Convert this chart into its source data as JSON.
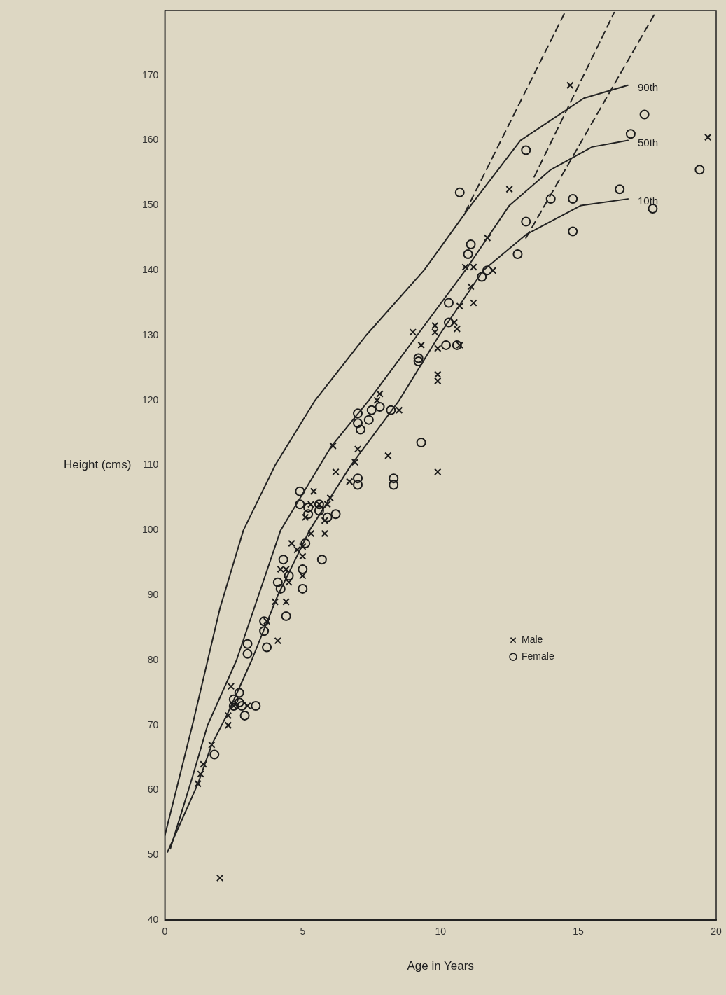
{
  "chart_data": {
    "type": "scatter",
    "xlabel": "Age in Years",
    "ylabel": "Height (cms)",
    "xlim": [
      0,
      20
    ],
    "ylim": [
      40,
      180
    ],
    "xticks": [
      0,
      5,
      10,
      15,
      20
    ],
    "yticks": [
      40,
      50,
      60,
      70,
      80,
      90,
      100,
      110,
      120,
      130,
      140,
      150,
      160,
      170
    ],
    "grid": false,
    "legend": "bottom right",
    "series": [
      {
        "name": "90th",
        "type": "line",
        "color": "#222222",
        "marker": "none",
        "line_style": "solid",
        "x": [
          0,
          1,
          2,
          2.85,
          4,
          5.45,
          7.3,
          9.4,
          11.1,
          12.9,
          15.2,
          16.8
        ],
        "values": [
          53,
          70,
          88,
          100,
          110,
          120,
          130,
          140,
          150,
          160,
          166.5,
          168.5
        ]
      },
      {
        "name": "50th",
        "type": "line",
        "color": "#222222",
        "marker": "none",
        "line_style": "solid",
        "x": [
          0.2,
          1,
          1.55,
          2.6,
          3.4,
          4.2,
          6.05,
          7.4,
          9.15,
          10.9,
          12.5,
          14,
          15.5,
          16.8
        ],
        "values": [
          51,
          62,
          70,
          80,
          90,
          100,
          113,
          120,
          130,
          140,
          150,
          155.5,
          159,
          160
        ]
      },
      {
        "name": "10th",
        "type": "line",
        "color": "#222222",
        "marker": "none",
        "line_style": "solid",
        "x": [
          0.1,
          1.2,
          1.7,
          2.3,
          3.15,
          4.1,
          5.25,
          6.75,
          8.5,
          9.95,
          11.55,
          13.1,
          15.1,
          16.8
        ],
        "values": [
          50.5,
          61,
          67,
          72,
          80,
          90,
          100,
          110,
          120,
          130,
          140,
          145.5,
          150,
          151
        ]
      },
      {
        "type": "line",
        "color": "#222222",
        "marker": "none",
        "line_style": "dashed",
        "x": [
          10.9,
          14.5
        ],
        "values": [
          149,
          179.6
        ]
      },
      {
        "type": "line",
        "color": "#222222",
        "marker": "none",
        "line_style": "dashed",
        "x": [
          13.4,
          16.3
        ],
        "values": [
          154.4,
          179.7
        ]
      },
      {
        "type": "line",
        "color": "#222222",
        "marker": "none",
        "line_style": "dashed",
        "x": [
          13.1,
          17.8
        ],
        "values": [
          145,
          179.7
        ]
      },
      {
        "name": "Male",
        "type": "scatter",
        "color": "#1a1a1a",
        "marker": "cross",
        "x": [
          1.2,
          1.3,
          1.4,
          1.7,
          2.0,
          2.3,
          2.3,
          2.4,
          2.5,
          3.0,
          3.7,
          4.0,
          4.1,
          4.2,
          4.4,
          4.4,
          4.5,
          4.6,
          4.8,
          5.0,
          5.0,
          5.0,
          5.1,
          5.3,
          5.3,
          5.4,
          5.6,
          5.8,
          5.8,
          5.9,
          6.0,
          6.1,
          6.2,
          6.7,
          6.9,
          7.0,
          7.7,
          7.8,
          8.1,
          8.5,
          9.0,
          9.3,
          9.8,
          9.8,
          9.9,
          9.9,
          9.9,
          9.9,
          10.5,
          10.6,
          10.7,
          10.7,
          10.9,
          11.1,
          11.2,
          11.2,
          11.7,
          11.9,
          12.5,
          14.7,
          19.7
        ],
        "values": [
          61,
          62.5,
          64,
          67,
          46.5,
          70,
          71.5,
          76,
          73,
          73,
          86,
          89,
          83,
          94,
          89,
          94,
          92,
          98,
          97,
          96,
          97.5,
          93,
          102,
          104,
          99.5,
          106,
          104,
          99.5,
          101.5,
          104,
          105,
          113,
          109,
          107.5,
          110.5,
          112.5,
          120,
          121,
          111.5,
          118.5,
          130.5,
          128.5,
          131.5,
          130.5,
          128,
          124,
          123,
          109,
          132,
          131,
          128.5,
          134.5,
          140.5,
          137.5,
          140.5,
          135,
          145,
          140,
          152.5,
          168.5,
          160.5
        ]
      },
      {
        "name": "Female",
        "type": "scatter",
        "color": "#1a1a1a",
        "marker": "circle",
        "x": [
          1.8,
          2.5,
          2.5,
          2.7,
          2.7,
          2.8,
          2.9,
          3.0,
          3.0,
          3.3,
          3.6,
          3.6,
          3.7,
          4.1,
          4.2,
          4.3,
          4.4,
          4.5,
          4.9,
          4.9,
          5.0,
          5.0,
          5.1,
          5.2,
          5.2,
          5.6,
          5.6,
          5.7,
          5.9,
          6.2,
          7.0,
          7.0,
          7.0,
          7.0,
          7.1,
          7.4,
          7.5,
          7.8,
          8.2,
          8.3,
          8.3,
          9.2,
          9.2,
          9.3,
          10.2,
          10.3,
          10.3,
          10.6,
          10.7,
          11.0,
          11.1,
          11.5,
          11.7,
          12.8,
          13.1,
          13.1,
          14.0,
          14.8,
          14.8,
          16.5,
          16.9,
          17.4,
          17.7,
          19.4
        ],
        "values": [
          65.5,
          74,
          73,
          75,
          73.5,
          73,
          71.5,
          81,
          82.5,
          73,
          84.5,
          86,
          82,
          92,
          91,
          95.5,
          86.8,
          93,
          106,
          104,
          94,
          91,
          98,
          103.5,
          102.5,
          104,
          103,
          95.5,
          102,
          102.5,
          108,
          107,
          118,
          116.5,
          115.5,
          117,
          118.5,
          119,
          118.5,
          108,
          107,
          126.5,
          126,
          113.5,
          128.5,
          135,
          132,
          128.5,
          152,
          142.5,
          144,
          139,
          140,
          142.5,
          147.5,
          158.5,
          151,
          151,
          146,
          152.5,
          161,
          164,
          149.5,
          155.5
        ]
      }
    ]
  }
}
